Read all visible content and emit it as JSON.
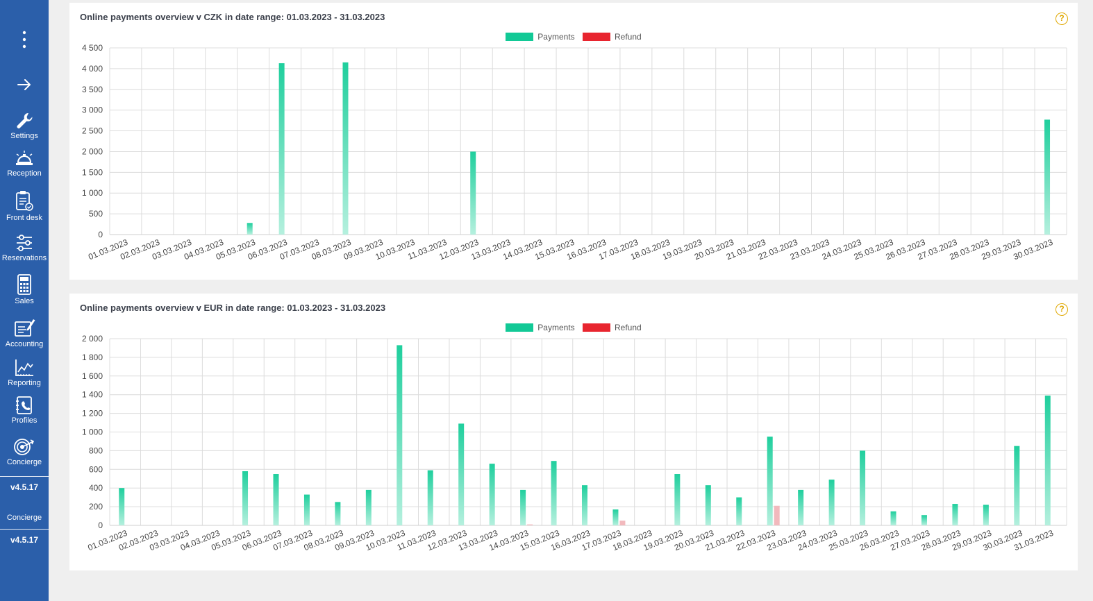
{
  "sidebar": {
    "items": [
      {
        "label": "",
        "icon": "more-vertical-icon"
      },
      {
        "label": "",
        "icon": "arrow-right-icon"
      },
      {
        "label": "Settings",
        "icon": "wrench-icon"
      },
      {
        "label": "Reception",
        "icon": "bell-icon"
      },
      {
        "label": "Front desk",
        "icon": "clipboard-icon"
      },
      {
        "label": "Reservations",
        "icon": "sliders-icon"
      },
      {
        "label": "Sales",
        "icon": "calculator-icon"
      },
      {
        "label": "Accounting",
        "icon": "document-pen-icon"
      },
      {
        "label": "Reporting",
        "icon": "chart-icon"
      },
      {
        "label": "Profiles",
        "icon": "contact-book-icon"
      },
      {
        "label": "Concierge",
        "icon": "target-icon"
      }
    ],
    "version_1": "v4.5.17",
    "concierge_2": "Concierge",
    "version_2": "v4.5.17"
  },
  "colors": {
    "sidebar": "#2b5faa",
    "payments": "#12c996",
    "refund": "#e8252f",
    "help": "#e0a800"
  },
  "charts": [
    {
      "title": "Online payments overview v CZK in date range: 01.03.2023 - 31.03.2023",
      "help": "?",
      "legend": {
        "payments": "Payments",
        "refund": "Refund"
      },
      "chart_data": {
        "type": "bar",
        "categories": [
          "01.03.2023",
          "02.03.2023",
          "03.03.2023",
          "04.03.2023",
          "05.03.2023",
          "06.03.2023",
          "07.03.2023",
          "08.03.2023",
          "09.03.2023",
          "10.03.2023",
          "11.03.2023",
          "12.03.2023",
          "13.03.2023",
          "14.03.2023",
          "15.03.2023",
          "16.03.2023",
          "17.03.2023",
          "18.03.2023",
          "19.03.2023",
          "20.03.2023",
          "21.03.2023",
          "22.03.2023",
          "23.03.2023",
          "24.03.2023",
          "25.03.2023",
          "26.03.2023",
          "27.03.2023",
          "28.03.2023",
          "29.03.2023",
          "30.03.2023"
        ],
        "series": [
          {
            "name": "Payments",
            "values": [
              0,
              0,
              0,
              0,
              280,
              4130,
              0,
              4150,
              0,
              0,
              0,
              2000,
              0,
              0,
              0,
              0,
              0,
              0,
              0,
              0,
              0,
              0,
              0,
              0,
              0,
              0,
              0,
              0,
              0,
              2770
            ]
          },
          {
            "name": "Refund",
            "values": [
              0,
              0,
              0,
              0,
              0,
              0,
              0,
              0,
              0,
              0,
              0,
              0,
              0,
              0,
              0,
              0,
              0,
              0,
              0,
              0,
              0,
              0,
              0,
              0,
              0,
              0,
              0,
              0,
              0,
              0
            ]
          }
        ],
        "yticks": [
          0,
          500,
          1000,
          1500,
          2000,
          2500,
          3000,
          3500,
          4000,
          4500
        ],
        "ytick_labels": [
          "0",
          "500",
          "1 000",
          "1 500",
          "2 000",
          "2 500",
          "3 000",
          "3 500",
          "4 000",
          "4 500"
        ],
        "ylim": [
          0,
          4500
        ],
        "grid": true,
        "legend_position": "top-center"
      }
    },
    {
      "title": "Online payments overview v EUR in date range: 01.03.2023 - 31.03.2023",
      "help": "?",
      "legend": {
        "payments": "Payments",
        "refund": "Refund"
      },
      "chart_data": {
        "type": "bar",
        "categories": [
          "01.03.2023",
          "02.03.2023",
          "03.03.2023",
          "04.03.2023",
          "05.03.2023",
          "06.03.2023",
          "07.03.2023",
          "08.03.2023",
          "09.03.2023",
          "10.03.2023",
          "11.03.2023",
          "12.03.2023",
          "13.03.2023",
          "14.03.2023",
          "15.03.2023",
          "16.03.2023",
          "17.03.2023",
          "18.03.2023",
          "19.03.2023",
          "20.03.2023",
          "21.03.2023",
          "22.03.2023",
          "23.03.2023",
          "24.03.2023",
          "25.03.2023",
          "26.03.2023",
          "27.03.2023",
          "28.03.2023",
          "29.03.2023",
          "30.03.2023",
          "31.03.2023"
        ],
        "series": [
          {
            "name": "Payments",
            "values": [
              400,
              0,
              0,
              0,
              580,
              550,
              330,
              250,
              380,
              1930,
              590,
              1090,
              660,
              380,
              690,
              430,
              170,
              0,
              550,
              430,
              300,
              950,
              380,
              490,
              800,
              150,
              110,
              230,
              220,
              850,
              1390
            ]
          },
          {
            "name": "Refund",
            "values": [
              0,
              0,
              0,
              0,
              0,
              0,
              0,
              0,
              0,
              0,
              0,
              0,
              0,
              10,
              0,
              0,
              50,
              0,
              0,
              0,
              0,
              210,
              0,
              0,
              0,
              0,
              0,
              0,
              0,
              0,
              0
            ]
          }
        ],
        "yticks": [
          0,
          200,
          400,
          600,
          800,
          1000,
          1200,
          1400,
          1600,
          1800,
          2000
        ],
        "ytick_labels": [
          "0",
          "200",
          "400",
          "600",
          "800",
          "1 000",
          "1 200",
          "1 400",
          "1 600",
          "1 800",
          "2 000"
        ],
        "ylim": [
          0,
          2000
        ],
        "grid": true,
        "legend_position": "top-center"
      }
    }
  ]
}
